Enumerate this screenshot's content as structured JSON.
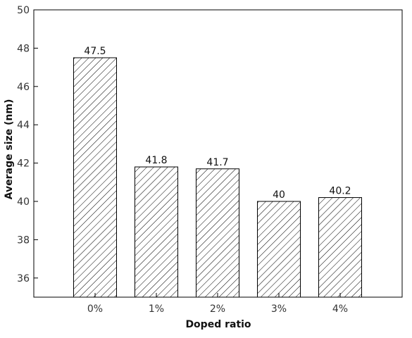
{
  "chart_data": {
    "type": "bar",
    "title": "",
    "xlabel": "Doped ratio",
    "ylabel": "Average size (nm)",
    "categories": [
      "0%",
      "1%",
      "2%",
      "3%",
      "4%"
    ],
    "values": [
      47.5,
      41.8,
      41.7,
      40,
      40.2
    ],
    "data_labels": [
      "47.5",
      "41.8",
      "41.7",
      "40",
      "40.2"
    ],
    "ylim": [
      35,
      50
    ],
    "yticks": [
      36,
      38,
      40,
      42,
      44,
      46,
      48,
      50
    ],
    "grid": false,
    "bar_fill": "diagonal-hatch",
    "colors": {
      "bar_stroke": "#000000",
      "hatch": "#000000",
      "background": "#ffffff"
    }
  }
}
